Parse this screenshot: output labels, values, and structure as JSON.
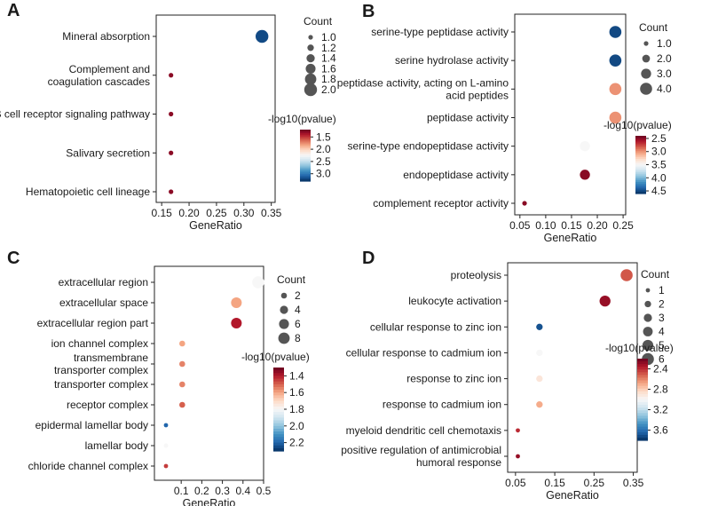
{
  "figure": {
    "panel_labels": [
      "A",
      "B",
      "C",
      "D"
    ],
    "legend_count_title": "Count",
    "legend_color_title": "-log10(pvalue)",
    "colorscale": [
      "#67001f",
      "#b2182b",
      "#d6604d",
      "#f4a582",
      "#fddbc7",
      "#f7f7f7",
      "#d1e5f0",
      "#92c5de",
      "#4393c3",
      "#2166ac",
      "#053061"
    ]
  },
  "chart_data": [
    {
      "panel": "A",
      "type": "scatter",
      "xlabel": "GeneRatio",
      "ylabel": "",
      "xlim": [
        0.14,
        0.357
      ],
      "xticks": [
        "0.15",
        "0.20",
        "0.25",
        "0.30",
        "0.35"
      ],
      "categories": [
        "Mineral absorption",
        "Complement and coagulation cascades",
        "B cell receptor signaling pathway",
        "Salivary secretion",
        "Hematopoietic cell lineage"
      ],
      "category_lines": [
        [
          "Mineral absorption"
        ],
        [
          "Complement and",
          "coagulation cascades"
        ],
        [
          "B cell receptor signaling pathway"
        ],
        [
          "Salivary secretion"
        ],
        [
          "Hematopoietic cell lineage"
        ]
      ],
      "x": [
        0.333,
        0.167,
        0.167,
        0.167,
        0.167
      ],
      "count": [
        2,
        1,
        1,
        1,
        1
      ],
      "neglog10p": [
        3.2,
        1.3,
        1.3,
        1.3,
        1.3
      ],
      "size_legend": {
        "labels": [
          "1.0",
          "1.2",
          "1.4",
          "1.6",
          "1.8",
          "2.0"
        ],
        "values": [
          1.0,
          1.2,
          1.4,
          1.6,
          1.8,
          2.0
        ],
        "range": [
          1,
          2
        ]
      },
      "color_legend": {
        "labels": [
          "1.5",
          "2.0",
          "2.5",
          "3.0"
        ],
        "values": [
          1.5,
          2.0,
          2.5,
          3.0
        ],
        "range": [
          1.2,
          3.3
        ]
      },
      "grid": false,
      "legend_position": "right"
    },
    {
      "panel": "B",
      "type": "scatter",
      "xlabel": "GeneRatio",
      "ylabel": "",
      "xlim": [
        0.04,
        0.255
      ],
      "xticks": [
        "0.05",
        "0.10",
        "0.15",
        "0.20",
        "0.25"
      ],
      "categories": [
        "serine-type peptidase activity",
        "serine hydrolase activity",
        "peptidase activity, acting on L-amino acid peptides",
        "peptidase activity",
        "serine-type endopeptidase activity",
        "endopeptidase activity",
        "complement receptor activity"
      ],
      "category_lines": [
        [
          "serine-type peptidase activity"
        ],
        [
          "serine hydrolase activity"
        ],
        [
          "peptidase activity, acting on L-amino",
          "acid peptides"
        ],
        [
          "peptidase activity"
        ],
        [
          "serine-type endopeptidase activity"
        ],
        [
          "endopeptidase activity"
        ],
        [
          "complement receptor activity"
        ]
      ],
      "label_gap": 26.5,
      "row_step": 26.5,
      "x": [
        0.235,
        0.235,
        0.235,
        0.235,
        0.176,
        0.176,
        0.059
      ],
      "count": [
        4,
        4,
        4,
        4,
        3,
        3,
        1
      ],
      "neglog10p": [
        4.5,
        4.5,
        3.0,
        3.0,
        3.5,
        2.5,
        2.5
      ],
      "size_legend": {
        "labels": [
          "1.0",
          "2.0",
          "3.0",
          "4.0"
        ],
        "values": [
          1,
          2,
          3,
          4
        ],
        "range": [
          1,
          4
        ]
      },
      "color_legend": {
        "labels": [
          "2.5",
          "3.0",
          "3.5",
          "4.0",
          "4.5"
        ],
        "values": [
          2.5,
          3.0,
          3.5,
          4.0,
          4.5
        ],
        "range": [
          2.4,
          4.6
        ]
      },
      "grid": false,
      "legend_position": "right"
    },
    {
      "panel": "C",
      "type": "scatter",
      "xlabel": "GeneRatio",
      "ylabel": "",
      "xlim": [
        -0.03,
        0.5
      ],
      "xticks": [
        "0.1",
        "0.2",
        "0.3",
        "0.4",
        "0.5"
      ],
      "categories": [
        "extracellular region",
        "extracellular space",
        "extracellular region part",
        "ion channel complex",
        "transmembrane transporter complex",
        "transporter complex",
        "receptor complex",
        "epidermal lamellar body",
        "lamellar body",
        "chloride channel complex"
      ],
      "category_lines": [
        [
          "extracellular region"
        ],
        [
          "extracellular space"
        ],
        [
          "extracellular region part"
        ],
        [
          "ion channel complex"
        ],
        [
          "transmembrane",
          "transporter complex"
        ],
        [
          "transporter complex"
        ],
        [
          "receptor complex"
        ],
        [
          "epidermal lamellar body"
        ],
        [
          "lamellar body"
        ],
        [
          "chloride channel complex"
        ]
      ],
      "x": [
        0.474,
        0.368,
        0.368,
        0.105,
        0.105,
        0.105,
        0.105,
        0.026,
        0.026,
        0.026
      ],
      "count": [
        9,
        7,
        7,
        2,
        2,
        2,
        2,
        1,
        1,
        1
      ],
      "neglog10p": [
        1.8,
        1.6,
        1.4,
        1.6,
        1.55,
        1.55,
        1.5,
        2.2,
        1.8,
        1.45
      ],
      "size_legend": {
        "labels": [
          "2",
          "4",
          "6",
          "8"
        ],
        "values": [
          2,
          4,
          6,
          8
        ],
        "range": [
          1,
          9
        ]
      },
      "color_legend": {
        "labels": [
          "1.4",
          "1.6",
          "1.8",
          "2.0",
          "2.2"
        ],
        "values": [
          1.4,
          1.6,
          1.8,
          2.0,
          2.2
        ],
        "range": [
          1.3,
          2.3
        ]
      },
      "grid": false,
      "legend_position": "right"
    },
    {
      "panel": "D",
      "type": "scatter",
      "xlabel": "GeneRatio",
      "ylabel": "",
      "xlim": [
        0.03,
        0.36
      ],
      "xticks": [
        "0.05",
        "0.15",
        "0.25",
        "0.35"
      ],
      "categories": [
        "proteolysis",
        "leukocyte activation",
        "cellular response to zinc ion",
        "cellular response to cadmium ion",
        "response to zinc ion",
        "response to cadmium ion",
        "myeloid dendritic cell chemotaxis",
        "positive regulation of antimicrobial humoral response"
      ],
      "category_lines": [
        [
          "proteolysis"
        ],
        [
          "leukocyte activation"
        ],
        [
          "cellular response to zinc ion"
        ],
        [
          "cellular response to cadmium ion"
        ],
        [
          "response to zinc ion"
        ],
        [
          "response to cadmium ion"
        ],
        [
          "myeloid dendritic cell chemotaxis"
        ],
        [
          "positive regulation of antimicrobial",
          "humoral response"
        ]
      ],
      "x": [
        0.333,
        0.278,
        0.111,
        0.111,
        0.111,
        0.111,
        0.056,
        0.056
      ],
      "count": [
        6,
        5,
        2,
        2,
        2,
        2,
        1,
        1
      ],
      "neglog10p": [
        2.5,
        2.3,
        3.7,
        3.0,
        2.9,
        2.7,
        2.4,
        2.3
      ],
      "size_legend": {
        "labels": [
          "1",
          "2",
          "3",
          "4",
          "5",
          "6"
        ],
        "values": [
          1,
          2,
          3,
          4,
          5,
          6
        ],
        "range": [
          1,
          6
        ]
      },
      "color_legend": {
        "labels": [
          "2.4",
          "2.8",
          "3.2",
          "3.6"
        ],
        "values": [
          2.4,
          2.8,
          3.2,
          3.6
        ],
        "range": [
          2.2,
          3.8
        ]
      },
      "grid": false,
      "legend_position": "right"
    }
  ]
}
